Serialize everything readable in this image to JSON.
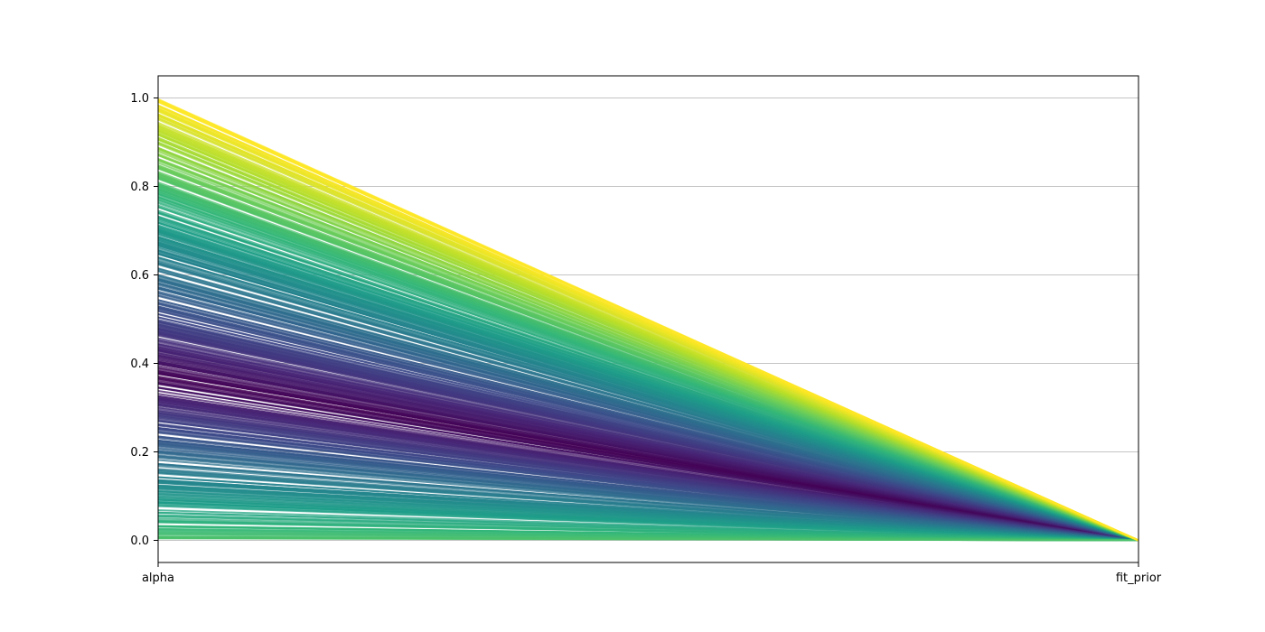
{
  "chart_data": {
    "type": "line",
    "subtype": "parallel_coordinates",
    "axes": [
      "alpha",
      "fit_prior"
    ],
    "ylim": [
      -0.05,
      1.05
    ],
    "yticks": [
      "0.0",
      "0.2",
      "0.4",
      "0.6",
      "0.8",
      "1.0"
    ],
    "ytick_values": [
      0.0,
      0.2,
      0.4,
      0.6,
      0.8,
      1.0
    ],
    "grid": "horizontal",
    "legend": "none",
    "colormap": "viridis",
    "series": {
      "alpha_range": [
        0.0,
        1.0
      ],
      "fit_prior_value": 0.0,
      "line_count": 500,
      "color_by": "score"
    },
    "colors": {
      "viridis": [
        "#440154",
        "#482878",
        "#3e4989",
        "#31688e",
        "#26828e",
        "#1f9e89",
        "#35b779",
        "#6ece58",
        "#b5de2b",
        "#fde725"
      ],
      "grid": "#b0b0b0",
      "spine": "#000000"
    }
  }
}
